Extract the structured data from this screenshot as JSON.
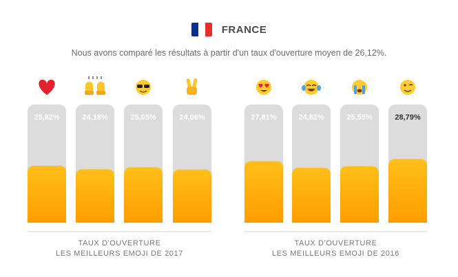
{
  "header": {
    "country": "FRANCE",
    "flag_colors": [
      "#0c2f8a",
      "#ffffff",
      "#e1302a"
    ],
    "subtitle": "Nous avons comparé les résultats à partir d'un taux d'ouverture moyen de 26,12%."
  },
  "colors": {
    "track": "#dcdcdc",
    "fill_top": "#ffbf1a",
    "fill_bottom": "#ff9d00",
    "label_light": "#ffffff",
    "label_dark": "#333333",
    "caption": "#777777",
    "divider": "#cfcfcf"
  },
  "chart_data": [
    {
      "type": "bar",
      "caption_line1": "TAUX D'OUVERTURE",
      "caption_line2": "LES MEILLEURS EMOJI DE 2017",
      "categories": [
        "red-heart-icon",
        "raising-hands-icon",
        "sunglasses-face-icon",
        "victory-hand-icon"
      ],
      "values": [
        25.82,
        24.18,
        25.05,
        24.06
      ],
      "labels": [
        "25,82%",
        "24,18%",
        "25,05%",
        "24,06%"
      ],
      "unit": "%"
    },
    {
      "type": "bar",
      "caption_line1": "TAUX D'OUVERTURE",
      "caption_line2": "LES MEILLEURS EMOJI DE 2016",
      "categories": [
        "heart-eyes-face-icon",
        "tears-of-joy-face-icon",
        "loudly-crying-face-icon",
        "winking-face-icon"
      ],
      "values": [
        27.81,
        24.82,
        25.55,
        28.79
      ],
      "labels": [
        "27,81%",
        "24,82%",
        "25,55%",
        "28,79%"
      ],
      "unit": "%",
      "dark_label_index": 3
    }
  ]
}
